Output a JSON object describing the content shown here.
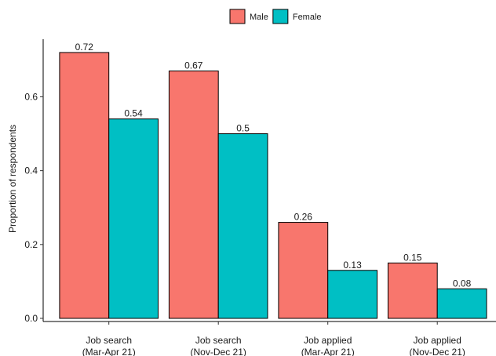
{
  "chart_data": {
    "type": "bar",
    "y_label": "Proportion of respondents",
    "categories": [
      "Job search\n(Mar-Apr 21)",
      "Job search\n(Nov-Dec 21)",
      "Job applied\n(Mar-Apr 21)",
      "Job applied\n(Nov-Dec 21)"
    ],
    "series": [
      {
        "name": "Male",
        "color": "#F8766D",
        "values": [
          0.72,
          0.67,
          0.26,
          0.15
        ]
      },
      {
        "name": "Female",
        "color": "#00BFC4",
        "values": [
          0.54,
          0.5,
          0.13,
          0.08
        ]
      }
    ],
    "ylim": [
      0,
      0.756
    ],
    "yticks": [
      {
        "value": 0,
        "label": "0.0"
      },
      0.2,
      0.4,
      0.6
    ],
    "legend": "top"
  }
}
